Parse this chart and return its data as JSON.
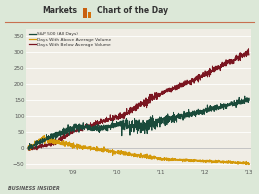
{
  "bg_color": "#dce8d8",
  "plot_bg": "#f0ede5",
  "legend": [
    {
      "label": "S&P 500 (All Days)",
      "color": "#1a4a3a"
    },
    {
      "label": "Days With Above Average Volume",
      "color": "#d4990a"
    },
    {
      "label": "Days With Below Average Volume",
      "color": "#7a1520"
    }
  ],
  "xlabel_ticks": [
    "'09",
    "'10",
    "'11",
    "'12",
    "'13"
  ],
  "yticks": [
    -50,
    0,
    50,
    100,
    150,
    200,
    250,
    300,
    350
  ],
  "ylim": [
    -65,
    370
  ],
  "xlim": [
    -0.05,
    5.05
  ],
  "footer": "BUSINESS INSIDER",
  "title_left": "Markets",
  "title_right": "Chart of the Day",
  "accent_color": "#d4600a",
  "separator_color": "#c87050"
}
